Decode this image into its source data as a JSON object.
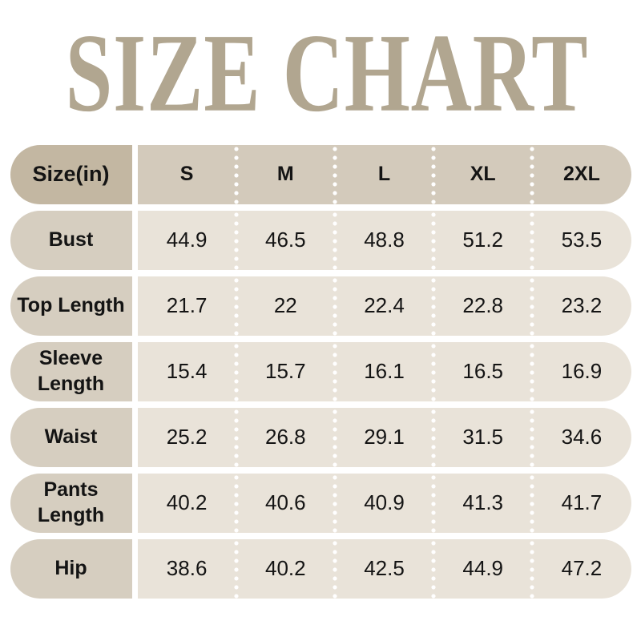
{
  "title": {
    "text": "SIZE CHART",
    "color": "#b1a690"
  },
  "colors": {
    "header_label_bg": "#c3b7a2",
    "header_cells_bg": "#d3cabb",
    "row_label_bg": "#d6cec0",
    "row_cells_bg": "#e9e3d9",
    "dot_separator": "#ffffff",
    "text": "#141414"
  },
  "chart_data": {
    "type": "table",
    "title": "SIZE CHART",
    "unit_header": "Size(in)",
    "columns": [
      "S",
      "M",
      "L",
      "XL",
      "2XL"
    ],
    "rows": [
      {
        "label": "Bust",
        "values": [
          "44.9",
          "46.5",
          "48.8",
          "51.2",
          "53.5"
        ]
      },
      {
        "label": "Top Length",
        "values": [
          "21.7",
          "22",
          "22.4",
          "22.8",
          "23.2"
        ]
      },
      {
        "label": "Sleeve Length",
        "values": [
          "15.4",
          "15.7",
          "16.1",
          "16.5",
          "16.9"
        ]
      },
      {
        "label": "Waist",
        "values": [
          "25.2",
          "26.8",
          "29.1",
          "31.5",
          "34.6"
        ]
      },
      {
        "label": "Pants Length",
        "values": [
          "40.2",
          "40.6",
          "40.9",
          "41.3",
          "41.7"
        ]
      },
      {
        "label": "Hip",
        "values": [
          "38.6",
          "40.2",
          "42.5",
          "44.9",
          "47.2"
        ]
      }
    ]
  }
}
